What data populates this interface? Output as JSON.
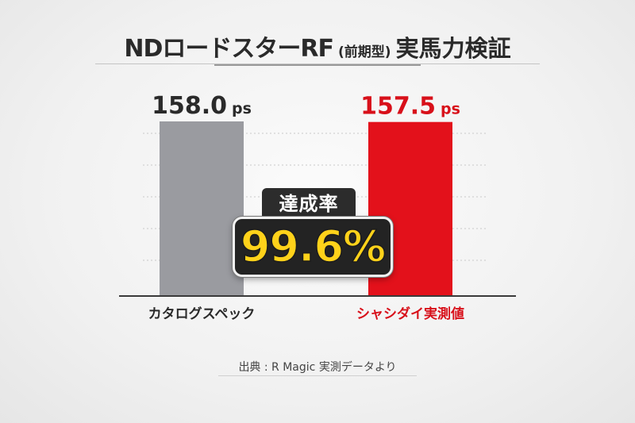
{
  "title": {
    "main": "NDロードスターRF",
    "sub": "(前期型)",
    "tail": "実馬力検証"
  },
  "rate": {
    "label": "達成率",
    "value": "99.6%"
  },
  "source": "出典 : R Magic  実測データより",
  "colors": {
    "catalog": "#9a9ba0",
    "measured": "#e3111b",
    "value_catalog": "#2a2a2a",
    "value_measured": "#d8101a",
    "rate_value": "#ffd21a"
  },
  "chart_data": {
    "type": "bar",
    "categories": [
      "カタログスペック",
      "シャシダイ実測値"
    ],
    "values": [
      158.0,
      157.5
    ],
    "value_labels": [
      "158.0",
      "157.5"
    ],
    "unit": "ps",
    "title": "NDロードスターRF (前期型) 実馬力検証",
    "xlabel": "",
    "ylabel": "",
    "ylim": [
      0,
      158
    ],
    "grid": true
  }
}
